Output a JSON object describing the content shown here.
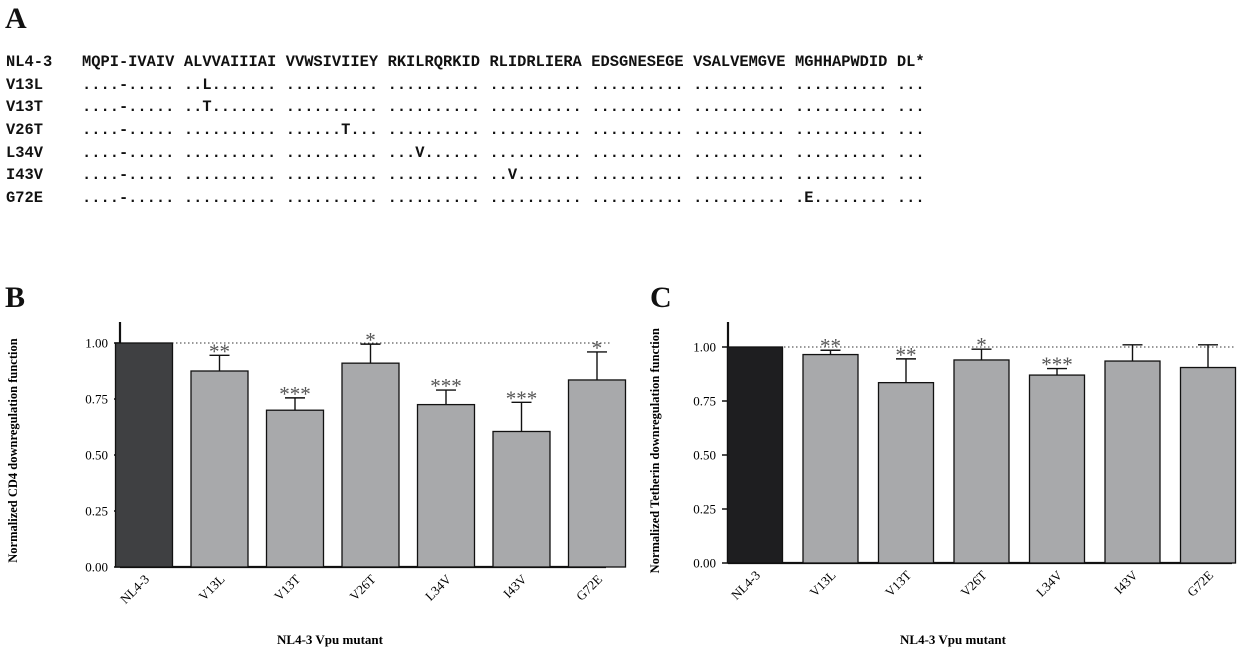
{
  "panels": {
    "a": "A",
    "b": "B",
    "c": "C"
  },
  "alignment": {
    "rows": [
      {
        "name": "NL4-3",
        "segments": [
          "MQPI-IVAIV",
          "ALVVAIIIAI",
          "VVWSIVIIEY",
          "RKILRQRKID",
          "RLIDRLIERA",
          "EDSGNESEGE",
          "VSALVEMGVE",
          "MGHHAPWDID",
          "DL*"
        ]
      },
      {
        "name": "V13L",
        "segments": [
          "....-.....",
          "..L.......",
          "..........",
          "..........",
          "..........",
          "..........",
          "..........",
          "..........",
          "..."
        ]
      },
      {
        "name": "V13T",
        "segments": [
          "....-.....",
          "..T.......",
          "..........",
          "..........",
          "..........",
          "..........",
          "..........",
          "..........",
          "..."
        ]
      },
      {
        "name": "V26T",
        "segments": [
          "....-.....",
          "..........",
          "......T...",
          "..........",
          "..........",
          "..........",
          "..........",
          "..........",
          "..."
        ]
      },
      {
        "name": "L34V",
        "segments": [
          "....-.....",
          "..........",
          "..........",
          "...V......",
          "..........",
          "..........",
          "..........",
          "..........",
          "..."
        ]
      },
      {
        "name": "I43V",
        "segments": [
          "....-.....",
          "..........",
          "..........",
          "..........",
          "..V.......",
          "..........",
          "..........",
          "..........",
          "..."
        ]
      },
      {
        "name": "G72E",
        "segments": [
          "....-.....",
          "..........",
          "..........",
          "..........",
          "..........",
          "..........",
          "..........",
          ".E........",
          "..."
        ]
      }
    ]
  },
  "chart_data": [
    {
      "type": "bar",
      "panel": "B",
      "categories": [
        "NL4-3",
        "V13L",
        "V13T",
        "V26T",
        "L34V",
        "I43V",
        "G72E"
      ],
      "values": [
        1.0,
        0.875,
        0.7,
        0.91,
        0.725,
        0.605,
        0.835
      ],
      "errors": [
        0.0,
        0.07,
        0.055,
        0.085,
        0.065,
        0.13,
        0.125
      ],
      "significance": [
        "",
        "**",
        "***",
        "*",
        "***",
        "***",
        "*"
      ],
      "bar_colors": [
        "#3f4042",
        "#a8a9ab",
        "#a8a9ab",
        "#a8a9ab",
        "#a8a9ab",
        "#a8a9ab",
        "#a8a9ab"
      ],
      "yticks": [
        "0.00",
        "0.25",
        "0.50",
        "0.75",
        "1.00"
      ],
      "ylim": [
        0,
        1.12
      ],
      "reference_line": 1.0,
      "xlabel": "NL4-3 Vpu mutant",
      "ylabel": "Normalized CD4 downregulation function"
    },
    {
      "type": "bar",
      "panel": "C",
      "categories": [
        "NL4-3",
        "V13L",
        "V13T",
        "V26T",
        "L34V",
        "I43V",
        "G72E"
      ],
      "values": [
        1.0,
        0.965,
        0.835,
        0.94,
        0.87,
        0.935,
        0.905
      ],
      "errors": [
        0.0,
        0.02,
        0.11,
        0.05,
        0.03,
        0.075,
        0.105
      ],
      "significance": [
        "",
        "**",
        "**",
        "*",
        "***",
        "",
        ""
      ],
      "bar_colors": [
        "#1e1e20",
        "#a8a9ab",
        "#a8a9ab",
        "#a8a9ab",
        "#a8a9ab",
        "#a8a9ab",
        "#a8a9ab"
      ],
      "yticks": [
        "0.00",
        "0.25",
        "0.50",
        "0.75",
        "1.00"
      ],
      "ylim": [
        0,
        1.12
      ],
      "reference_line": 1.0,
      "xlabel": "NL4-3 Vpu mutant",
      "ylabel": "Normalized Tetherin downregulation function"
    }
  ]
}
